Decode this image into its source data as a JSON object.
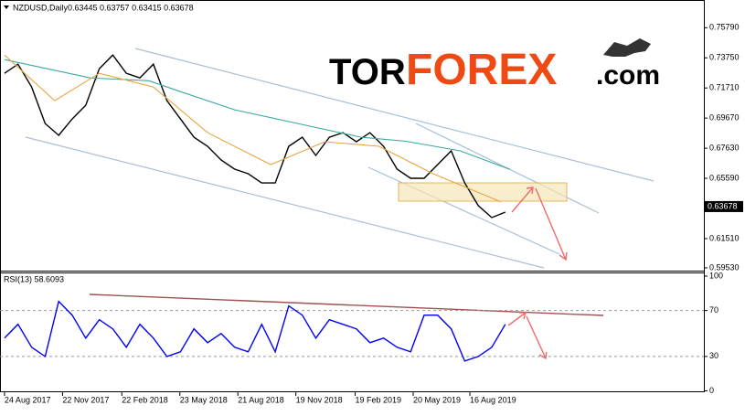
{
  "logo": {
    "tor": "TOR",
    "forex": "FOREX",
    "com": ".com"
  },
  "chart_data": [
    {
      "type": "line",
      "title": "NZDUSD,Daily",
      "subtitle": "0.63445 0.63757 0.63415 0.63678",
      "xlim": [
        "2017-08-17",
        "2020-08-13"
      ],
      "ylim": [
        0.5934,
        0.7748
      ],
      "yticks": [
        {
          "value": 0.7579,
          "label": "0.75790"
        },
        {
          "value": 0.7375,
          "label": "0.73750"
        },
        {
          "value": 0.7171,
          "label": "0.71710"
        },
        {
          "value": 0.6967,
          "label": "0.69670"
        },
        {
          "value": 0.6763,
          "label": "0.67630"
        },
        {
          "value": 0.6559,
          "label": "0.65590"
        },
        {
          "value": 0.6151,
          "label": "0.61510"
        },
        {
          "value": 0.5953,
          "label": "0.59530"
        }
      ],
      "last_price": {
        "value": 0.63678,
        "label": "0.63678"
      },
      "series": [
        {
          "color": "#000000",
          "x": [
            "2017-08-24",
            "2017-09-14",
            "2017-10-05",
            "2017-10-26",
            "2017-11-16",
            "2017-12-07",
            "2017-12-28",
            "2018-01-18",
            "2018-02-08",
            "2018-03-01",
            "2018-03-22",
            "2018-04-12",
            "2018-05-03",
            "2018-05-24",
            "2018-06-14",
            "2018-07-05",
            "2018-07-26",
            "2018-08-16",
            "2018-09-06",
            "2018-09-27",
            "2018-10-18",
            "2018-11-08",
            "2018-11-29",
            "2018-12-20",
            "2019-01-10",
            "2019-01-31",
            "2019-02-21",
            "2019-03-14",
            "2019-04-04",
            "2019-04-25",
            "2019-05-16",
            "2019-06-06",
            "2019-06-27",
            "2019-07-18",
            "2019-08-08",
            "2019-08-29",
            "2019-09-19",
            "2019-10-10"
          ],
          "values": [
            0.727,
            0.7332,
            0.7177,
            0.693,
            0.685,
            0.6961,
            0.7054,
            0.7301,
            0.7394,
            0.727,
            0.7239,
            0.7332,
            0.7085,
            0.6961,
            0.6837,
            0.6776,
            0.6683,
            0.6621,
            0.659,
            0.6528,
            0.6528,
            0.6776,
            0.6837,
            0.6714,
            0.6837,
            0.6868,
            0.6807,
            0.6868,
            0.6776,
            0.6621,
            0.6559,
            0.6559,
            0.6652,
            0.6745,
            0.6528,
            0.6374,
            0.6293,
            0.633
          ]
        },
        {
          "color": "#3aa9a0",
          "x": [
            "2017-08-24",
            "2018-01-04",
            "2018-04-05",
            "2018-05-24",
            "2018-08-16",
            "2018-11-22",
            "2019-02-28",
            "2019-05-09",
            "2019-08-01",
            "2019-10-17"
          ],
          "values": [
            0.7363,
            0.7239,
            0.722,
            0.7146,
            0.7023,
            0.693,
            0.6837,
            0.681,
            0.6745,
            0.662
          ]
        },
        {
          "color": "#e8a33a",
          "x": [
            "2017-08-24",
            "2017-11-10",
            "2018-01-18",
            "2018-04-12",
            "2018-07-05",
            "2018-10-11",
            "2019-01-03",
            "2019-03-28",
            "2019-06-20",
            "2019-10-03"
          ],
          "values": [
            0.7394,
            0.7085,
            0.727,
            0.7177,
            0.6868,
            0.6652,
            0.6807,
            0.6776,
            0.659,
            0.64
          ]
        }
      ]
    },
    {
      "type": "line",
      "title": "RSI(13) 58.6093",
      "xlim": [
        "2017-08-17",
        "2020-08-13"
      ],
      "ylim": [
        0,
        100
      ],
      "yticks": [
        100,
        70,
        30,
        0
      ],
      "levels": [
        70,
        30
      ],
      "xticks": [
        {
          "value": "2017-08-24",
          "label": "24 Aug 2017"
        },
        {
          "value": "2017-11-22",
          "label": "22 Nov 2017"
        },
        {
          "value": "2018-02-22",
          "label": "22 Feb 2018"
        },
        {
          "value": "2018-05-23",
          "label": "23 May 2018"
        },
        {
          "value": "2018-08-21",
          "label": "21 Aug 2018"
        },
        {
          "value": "2018-11-19",
          "label": "19 Nov 2018"
        },
        {
          "value": "2019-02-19",
          "label": "19 Feb 2019"
        },
        {
          "value": "2019-05-20",
          "label": "20 May 2019"
        },
        {
          "value": "2019-08-16",
          "label": "16 Aug 2019"
        }
      ],
      "series": [
        {
          "color": "#0000ff",
          "x": [
            "2017-08-24",
            "2017-09-14",
            "2017-10-05",
            "2017-10-26",
            "2017-11-16",
            "2017-12-07",
            "2017-12-28",
            "2018-01-18",
            "2018-02-08",
            "2018-03-01",
            "2018-03-22",
            "2018-04-12",
            "2018-05-03",
            "2018-05-24",
            "2018-06-14",
            "2018-07-05",
            "2018-07-26",
            "2018-08-16",
            "2018-09-06",
            "2018-09-27",
            "2018-10-18",
            "2018-11-08",
            "2018-11-29",
            "2018-12-20",
            "2019-01-10",
            "2019-01-31",
            "2019-02-21",
            "2019-03-14",
            "2019-04-04",
            "2019-04-25",
            "2019-05-16",
            "2019-06-06",
            "2019-06-27",
            "2019-07-18",
            "2019-08-08",
            "2019-08-29",
            "2019-09-19",
            "2019-10-10"
          ],
          "values": [
            46,
            58,
            38,
            30,
            78,
            66,
            46,
            62,
            54,
            38,
            58,
            46,
            30,
            34,
            54,
            42,
            50,
            38,
            34,
            58,
            34,
            74,
            66,
            46,
            62,
            58,
            54,
            42,
            46,
            38,
            34,
            66,
            66,
            54,
            26,
            30,
            38,
            58
          ]
        }
      ]
    }
  ]
}
